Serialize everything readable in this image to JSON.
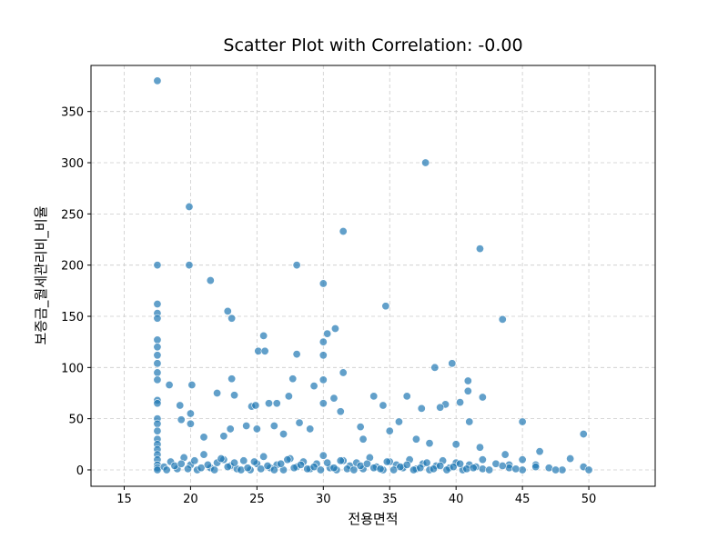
{
  "chart_data": {
    "type": "scatter",
    "title": "Scatter Plot with Correlation: -0.00",
    "xlabel": "전용면적",
    "ylabel": "보증금_월세관리비_비율",
    "color": "#1f77b4",
    "grid": true,
    "xlim": [
      12.5,
      55
    ],
    "ylim": [
      -16,
      395
    ],
    "xticks": [
      15,
      20,
      25,
      30,
      35,
      40,
      45,
      50
    ],
    "yticks": [
      0,
      50,
      100,
      150,
      200,
      250,
      300,
      350
    ],
    "x": [
      17.5,
      17.5,
      17.5,
      17.5,
      17.5,
      17.5,
      17.5,
      17.5,
      17.5,
      17.5,
      17.5,
      17.5,
      17.5,
      17.5,
      17.5,
      17.5,
      17.5,
      17.5,
      17.5,
      17.5,
      17.5,
      17.5,
      17.5,
      17.5,
      19.9,
      19.9,
      21.5,
      22.8,
      23.1,
      25.5,
      25.1,
      25.6,
      28,
      30,
      31.5,
      37.7,
      41.8,
      34.7,
      43.5,
      30.9,
      30.3,
      30,
      30,
      28,
      39.7,
      38.4,
      31.5,
      27.7,
      30,
      23.1,
      18.4,
      20.1,
      29.3,
      40.9,
      40.9,
      22,
      23.3,
      27.4,
      33.8,
      36.3,
      42,
      30.8,
      40.3,
      39.2,
      38.8,
      37.4,
      30,
      31.3,
      19.2,
      24.6,
      24.9,
      25.9,
      26.5,
      34.5,
      20,
      20,
      35.7,
      41,
      45,
      49.6,
      46.3,
      41.8,
      43.7,
      48.6,
      32.8,
      28.2,
      26.3,
      24.2,
      22.5,
      21,
      19.3,
      23,
      25,
      27,
      29,
      33,
      35,
      37,
      38,
      40,
      42,
      44,
      45,
      46,
      47,
      48,
      49.6,
      50,
      18,
      18.5,
      19,
      19.5,
      20,
      20.5,
      21,
      21.5,
      22,
      22.5,
      23,
      23.5,
      24,
      24.5,
      25,
      25.5,
      26,
      26.5,
      27,
      27.5,
      28,
      28.5,
      29,
      29.5,
      30,
      30.5,
      31,
      31.5,
      32,
      32.5,
      33,
      33.5,
      34,
      34.5,
      35,
      35.5,
      36,
      36.5,
      37,
      37.5,
      38,
      38.5,
      39,
      39.5,
      40,
      40.5,
      41,
      41.5,
      42,
      43,
      44,
      45,
      18.2,
      18.8,
      19.3,
      19.8,
      20.3,
      20.8,
      21.3,
      21.8,
      22.3,
      22.8,
      23.3,
      23.8,
      24.3,
      24.8,
      25.3,
      25.8,
      26.3,
      26.8,
      27.3,
      27.8,
      28.3,
      28.8,
      29.3,
      29.8,
      30.3,
      30.8,
      31.3,
      31.8,
      32.3,
      32.8,
      33.3,
      33.8,
      34.3,
      34.8,
      35.3,
      35.8,
      36.3,
      36.8,
      37.3,
      37.8,
      38.3,
      38.8,
      39.3,
      39.8,
      40.3,
      40.8,
      41.3,
      42.5,
      43.5,
      44.5,
      46,
      47.5
    ],
    "y": [
      380,
      200,
      162,
      153,
      148,
      127,
      120,
      112,
      104,
      95,
      88,
      68,
      65,
      50,
      45,
      38,
      30,
      25,
      20,
      15,
      10,
      5,
      2,
      0,
      257,
      200,
      185,
      155,
      148,
      131,
      116,
      116,
      200,
      182,
      233,
      300,
      216,
      160,
      147,
      138,
      133,
      125,
      112,
      113,
      104,
      100,
      95,
      89,
      88,
      89,
      83,
      83,
      82,
      87,
      77,
      75,
      73,
      72,
      72,
      72,
      71,
      70,
      66,
      64,
      61,
      60,
      65,
      57,
      63,
      62,
      63,
      65,
      65,
      63,
      55,
      45,
      47,
      47,
      47,
      35,
      18,
      22,
      15,
      11,
      42,
      46,
      43,
      43,
      33,
      32,
      49,
      40,
      40,
      35,
      40,
      30,
      38,
      30,
      26,
      25,
      10,
      5,
      10,
      5,
      2,
      0,
      3,
      0,
      3,
      8,
      1,
      12,
      5,
      0,
      15,
      2,
      7,
      10,
      4,
      1,
      9,
      0,
      6,
      13,
      2,
      5,
      0,
      11,
      3,
      8,
      1,
      6,
      14,
      2,
      0,
      9,
      4,
      7,
      1,
      12,
      3,
      0,
      8,
      5,
      2,
      10,
      1,
      6,
      0,
      4,
      9,
      2,
      7,
      0,
      5,
      3,
      1,
      6,
      2,
      0,
      0,
      4,
      6,
      1,
      9,
      2,
      5,
      0,
      11,
      3,
      7,
      0,
      2,
      8,
      1,
      4,
      0,
      6,
      10,
      2,
      5,
      1,
      3,
      0,
      7,
      2,
      9,
      1,
      0,
      4,
      6,
      2,
      1,
      8,
      0,
      3,
      5,
      0,
      2,
      7,
      1,
      4,
      0,
      3,
      6,
      1,
      2,
      0,
      4,
      1,
      3,
      0
    ]
  }
}
